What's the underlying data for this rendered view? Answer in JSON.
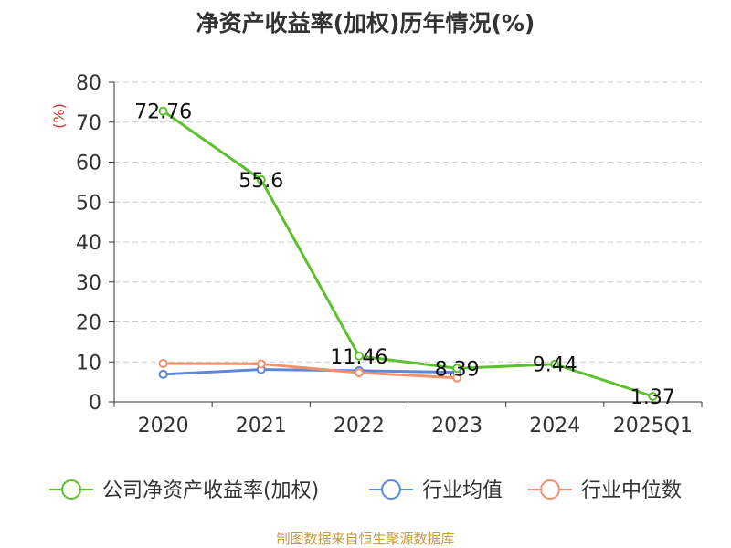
{
  "chart_data": {
    "type": "line",
    "title": "净资产收益率(加权)历年情况(%)",
    "ylabel": "(%)",
    "xlabel": "",
    "categories": [
      "2020",
      "2021",
      "2022",
      "2023",
      "2024",
      "2025Q1"
    ],
    "ylim": [
      0,
      80
    ],
    "yticks": [
      0,
      10,
      20,
      30,
      40,
      50,
      60,
      70,
      80
    ],
    "grid": true,
    "legend_position": "bottom",
    "series": [
      {
        "name": "公司净资产收益率(加权)",
        "color": "#5cc12c",
        "values": [
          72.76,
          55.6,
          11.46,
          8.39,
          9.44,
          1.37
        ],
        "labels": [
          "72.76",
          "55.6",
          "11.46",
          "8.39",
          "9.44",
          "1.37"
        ]
      },
      {
        "name": "行业均值",
        "color": "#5b87dd",
        "values": [
          6.9,
          8.1,
          7.8,
          7.4,
          null,
          null
        ]
      },
      {
        "name": "行业中位数",
        "color": "#f4906a",
        "values": [
          9.6,
          9.5,
          7.3,
          6.0,
          null,
          null
        ]
      }
    ]
  },
  "source_note": "制图数据来自恒生聚源数据库"
}
